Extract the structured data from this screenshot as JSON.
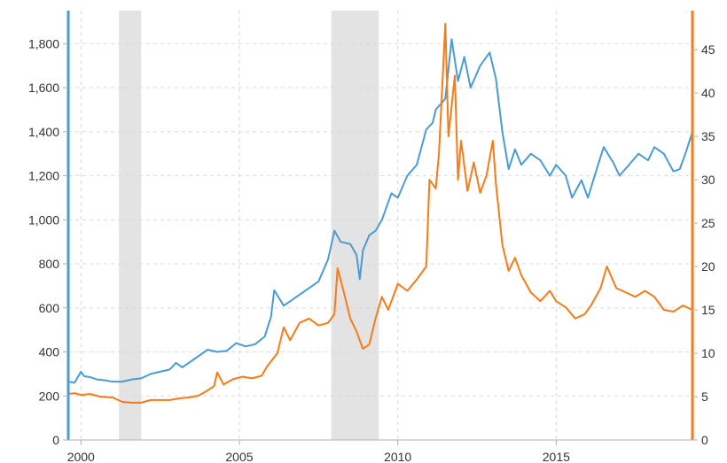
{
  "chart_data": {
    "type": "line",
    "title": "",
    "xlabel": "",
    "ylabel": "",
    "x_ticks": [
      "2000",
      "2005",
      "2010",
      "2015"
    ],
    "x_range": [
      1999.6,
      2019.3
    ],
    "y_left": {
      "ticks": [
        "0",
        "200",
        "400",
        "600",
        "800",
        "1,000",
        "1,200",
        "1,400",
        "1,600",
        "1,800"
      ],
      "range": [
        0,
        1950
      ],
      "color": "#4b9bd4"
    },
    "y_right": {
      "ticks": [
        "0",
        "5",
        "10",
        "15",
        "20",
        "25",
        "30",
        "35",
        "40",
        "45"
      ],
      "range": [
        0,
        49.5
      ],
      "color": "#f57c18"
    },
    "grid": true,
    "recession_bands": [
      [
        2001.2,
        2001.9
      ],
      [
        2007.9,
        2009.4
      ]
    ],
    "series": [
      {
        "axis": "left",
        "color": "#4b9bd4",
        "x": [
          1999.6,
          1999.8,
          2000.0,
          2000.1,
          2000.3,
          2000.5,
          2000.8,
          2001.0,
          2001.3,
          2001.6,
          2001.9,
          2002.2,
          2002.5,
          2002.8,
          2003.0,
          2003.2,
          2003.5,
          2003.8,
          2004.0,
          2004.3,
          2004.6,
          2004.9,
          2005.2,
          2005.5,
          2005.8,
          2006.0,
          2006.1,
          2006.4,
          2006.6,
          2006.9,
          2007.2,
          2007.5,
          2007.8,
          2008.0,
          2008.2,
          2008.5,
          2008.7,
          2008.8,
          2008.9,
          2009.1,
          2009.3,
          2009.5,
          2009.8,
          2010.0,
          2010.3,
          2010.6,
          2010.9,
          2011.1,
          2011.2,
          2011.5,
          2011.7,
          2011.9,
          2012.1,
          2012.3,
          2012.6,
          2012.9,
          2013.1,
          2013.3,
          2013.5,
          2013.7,
          2013.9,
          2014.2,
          2014.5,
          2014.8,
          2015.0,
          2015.3,
          2015.5,
          2015.8,
          2016.0,
          2016.3,
          2016.5,
          2016.8,
          2017.0,
          2017.3,
          2017.6,
          2017.9,
          2018.1,
          2018.4,
          2018.7,
          2018.9,
          2019.1,
          2019.3
        ],
        "values": [
          265,
          260,
          310,
          290,
          285,
          275,
          270,
          265,
          265,
          275,
          280,
          300,
          310,
          320,
          350,
          330,
          360,
          390,
          410,
          400,
          405,
          440,
          425,
          435,
          470,
          560,
          680,
          610,
          630,
          660,
          690,
          720,
          820,
          950,
          900,
          890,
          840,
          730,
          860,
          930,
          950,
          1000,
          1120,
          1100,
          1200,
          1250,
          1410,
          1440,
          1500,
          1550,
          1820,
          1630,
          1740,
          1600,
          1700,
          1760,
          1640,
          1400,
          1230,
          1320,
          1250,
          1300,
          1270,
          1200,
          1250,
          1200,
          1100,
          1180,
          1100,
          1240,
          1330,
          1260,
          1200,
          1250,
          1300,
          1270,
          1330,
          1300,
          1220,
          1230,
          1310,
          1400
        ]
      },
      {
        "axis": "right",
        "color": "#f57c18",
        "x": [
          1999.6,
          1999.8,
          2000.0,
          2000.3,
          2000.6,
          2001.0,
          2001.3,
          2001.6,
          2001.9,
          2002.2,
          2002.5,
          2002.8,
          2003.1,
          2003.4,
          2003.7,
          2003.9,
          2004.2,
          2004.3,
          2004.5,
          2004.8,
          2005.1,
          2005.4,
          2005.7,
          2005.9,
          2006.2,
          2006.4,
          2006.6,
          2006.9,
          2007.2,
          2007.5,
          2007.8,
          2008.0,
          2008.1,
          2008.3,
          2008.5,
          2008.7,
          2008.9,
          2009.1,
          2009.3,
          2009.5,
          2009.7,
          2010.0,
          2010.3,
          2010.6,
          2010.9,
          2011.0,
          2011.2,
          2011.3,
          2011.5,
          2011.6,
          2011.8,
          2011.9,
          2012.0,
          2012.2,
          2012.4,
          2012.6,
          2012.8,
          2013.0,
          2013.1,
          2013.3,
          2013.5,
          2013.7,
          2013.9,
          2014.2,
          2014.5,
          2014.8,
          2015.0,
          2015.3,
          2015.6,
          2015.9,
          2016.1,
          2016.4,
          2016.6,
          2016.9,
          2017.2,
          2017.5,
          2017.8,
          2018.1,
          2018.4,
          2018.7,
          2019.0,
          2019.3
        ],
        "values": [
          5.3,
          5.4,
          5.2,
          5.3,
          5.0,
          4.9,
          4.4,
          4.3,
          4.3,
          4.6,
          4.6,
          4.6,
          4.8,
          4.9,
          5.1,
          5.5,
          6.2,
          7.8,
          6.4,
          7.0,
          7.3,
          7.1,
          7.4,
          8.6,
          10.0,
          13.0,
          11.5,
          13.5,
          14.0,
          13.2,
          13.5,
          14.5,
          19.8,
          17.0,
          14.0,
          12.5,
          10.5,
          11.0,
          14.0,
          16.5,
          15.0,
          18.0,
          17.2,
          18.5,
          20.0,
          30.0,
          29.0,
          33.0,
          48.0,
          35.0,
          42.0,
          30.0,
          34.5,
          28.7,
          32.0,
          28.5,
          30.5,
          34.5,
          29.5,
          22.5,
          19.5,
          21.0,
          19.0,
          17.0,
          16.0,
          17.2,
          16.0,
          15.3,
          14.0,
          14.5,
          15.5,
          17.5,
          20.0,
          17.5,
          17.0,
          16.5,
          17.2,
          16.5,
          15.0,
          14.8,
          15.5,
          15.0
        ]
      }
    ]
  }
}
